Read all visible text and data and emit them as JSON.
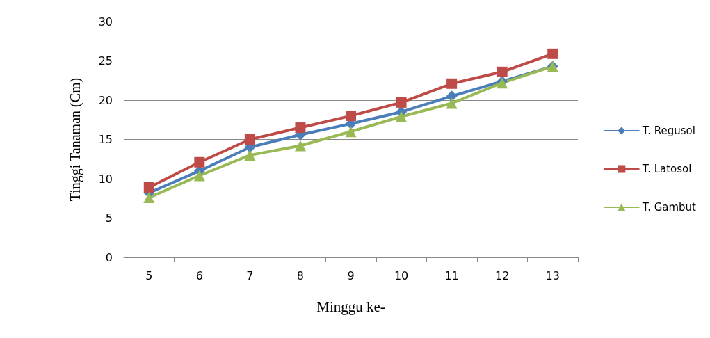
{
  "chart_data": {
    "type": "line",
    "xlabel": "Minggu ke-",
    "ylabel": "Tinggi Tanaman (Cm)",
    "categories": [
      "5",
      "6",
      "7",
      "8",
      "9",
      "10",
      "11",
      "12",
      "13"
    ],
    "series": [
      {
        "name": "T. Regusol",
        "color": "#4a7ebb",
        "marker": "diamond",
        "values": [
          8.2,
          11.0,
          14.0,
          15.6,
          17.0,
          18.5,
          20.5,
          22.4,
          24.3
        ]
      },
      {
        "name": "T. Latosol",
        "color": "#be4b48",
        "marker": "square",
        "values": [
          8.9,
          12.1,
          15.0,
          16.5,
          18.0,
          19.7,
          22.1,
          23.6,
          25.9
        ]
      },
      {
        "name": "T. Gambut",
        "color": "#98b954",
        "marker": "triangle",
        "values": [
          7.6,
          10.4,
          13.0,
          14.2,
          16.0,
          17.9,
          19.6,
          22.2,
          24.3
        ]
      }
    ],
    "ylim": [
      0,
      30
    ],
    "yticks": [
      0,
      5,
      10,
      15,
      20,
      25,
      30
    ],
    "grid": "y",
    "legend": "right"
  }
}
